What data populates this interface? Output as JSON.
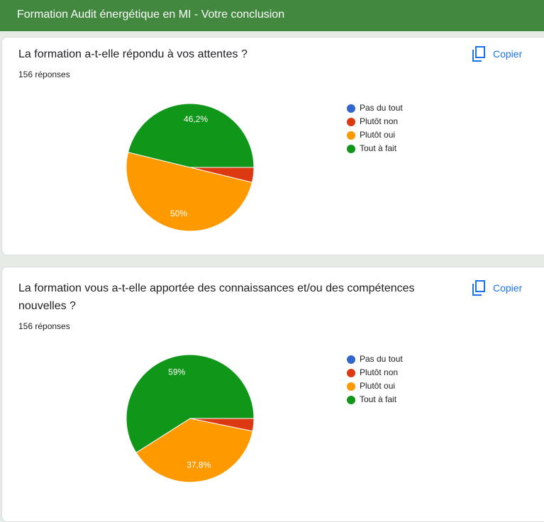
{
  "header": {
    "title": "Formation Audit énergétique en MI - Votre conclusion"
  },
  "cards": [
    {
      "question": "La formation a-t-elle répondu à vos attentes ?",
      "responses": "156 réponses",
      "copy": "Copier"
    },
    {
      "question": "La formation vous a-t-elle apportée des connaissances et/ou des compétences nouvelles ?",
      "responses": "156 réponses",
      "copy": "Copier"
    }
  ],
  "chart_data": [
    {
      "type": "pie",
      "categories": [
        "Pas du tout",
        "Plutôt non",
        "Plutôt oui",
        "Tout à fait"
      ],
      "values": [
        0,
        3.8,
        50,
        46.2
      ],
      "value_labels": [
        null,
        null,
        "50%",
        "46,2%"
      ],
      "colors": [
        "#3366cc",
        "#dc3912",
        "#ff9900",
        "#109618"
      ],
      "start_angle": 90,
      "legend": "right"
    },
    {
      "type": "pie",
      "categories": [
        "Pas du tout",
        "Plutôt non",
        "Plutôt oui",
        "Tout à fait"
      ],
      "values": [
        0,
        3.2,
        37.8,
        59
      ],
      "value_labels": [
        null,
        null,
        "37,8%",
        "59%"
      ],
      "colors": [
        "#3366cc",
        "#dc3912",
        "#ff9900",
        "#109618"
      ],
      "start_angle": 90,
      "legend": "right"
    }
  ]
}
